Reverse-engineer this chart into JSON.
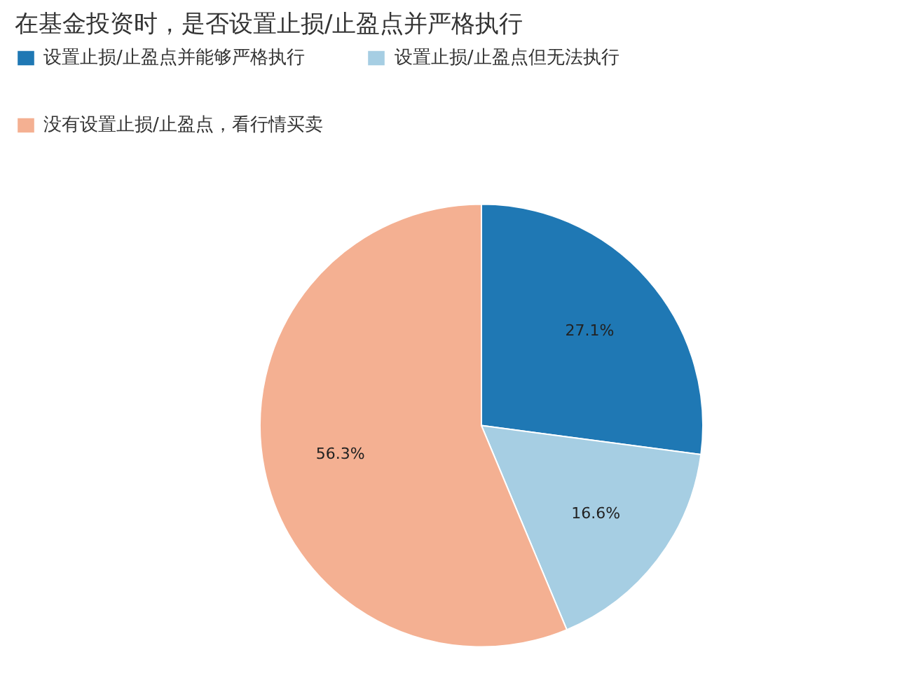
{
  "chart_data": {
    "type": "pie",
    "title": "在基金投资时，是否设置止损/止盈点并严格执行",
    "categories": [
      "设置止损/止盈点并能够严格执行",
      "设置止损/止盈点但无法执行",
      "没有设置止损/止盈点，看行情买卖"
    ],
    "values": [
      27.1,
      16.6,
      56.3
    ],
    "colors": [
      "#1f78b4",
      "#a6cee3",
      "#f4b092"
    ],
    "value_labels": [
      "27.1%",
      "16.6%",
      "56.3%"
    ],
    "legend": "top"
  }
}
